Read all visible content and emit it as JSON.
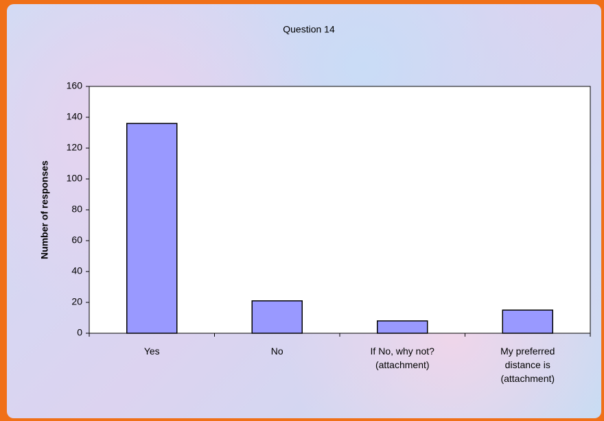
{
  "chart_data": {
    "type": "bar",
    "title": "Question 14",
    "y_label": "Number of responses",
    "categories": [
      "Yes",
      "No",
      "If No, why not?(attachment)",
      "My preferred distance is (attachment)"
    ],
    "values": [
      136,
      21,
      8,
      15
    ],
    "color": "#9999ff",
    "ylim": [
      0,
      160
    ],
    "yticks": [
      0,
      20,
      40,
      60,
      80,
      100,
      120,
      140,
      160
    ],
    "grid": false
  }
}
